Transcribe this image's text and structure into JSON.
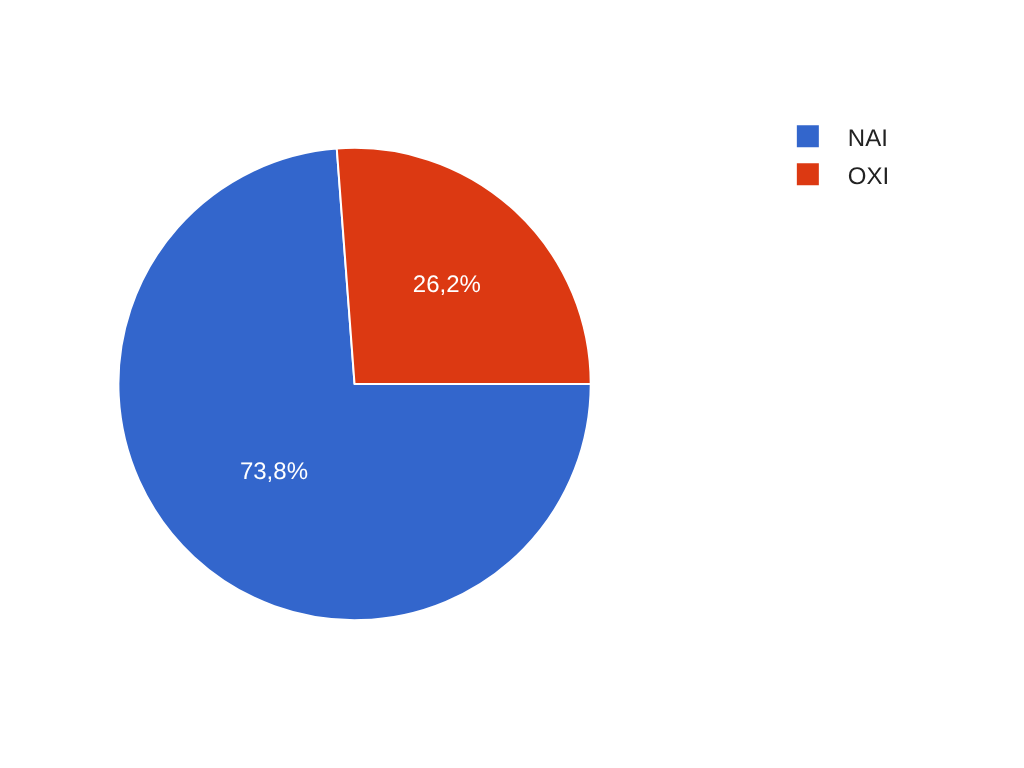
{
  "chart_data": {
    "type": "pie",
    "categories": [
      "NAI",
      "OXI"
    ],
    "values": [
      73.8,
      26.2
    ],
    "colors": [
      "#3366cc",
      "#dc3912"
    ],
    "value_labels": [
      "73,8%",
      "26,2%"
    ],
    "legend": "top right"
  }
}
